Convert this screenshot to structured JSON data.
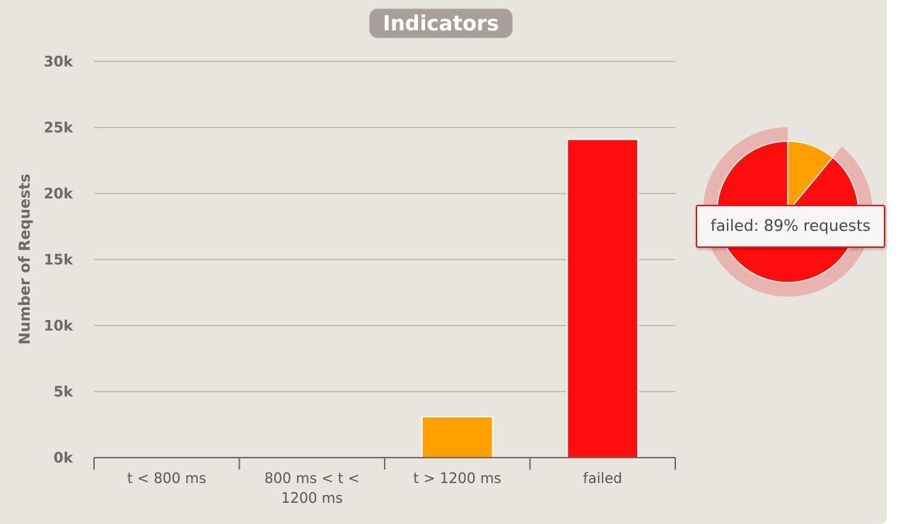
{
  "chart": {
    "title": "Indicators",
    "tooltip": "failed: 89% requests"
  },
  "chart_data": [
    {
      "type": "bar",
      "title": "Indicators",
      "xlabel": "",
      "ylabel": "Number of Requests",
      "categories": [
        "t < 800 ms",
        "800 ms < t < 1200 ms",
        "t > 1200 ms",
        "failed"
      ],
      "category_lines": [
        [
          "t < 800 ms"
        ],
        [
          "800 ms < t <",
          "1200 ms"
        ],
        [
          "t > 1200 ms"
        ],
        [
          "failed"
        ]
      ],
      "values": [
        0,
        0,
        3100,
        24100
      ],
      "colors": [
        "#4caf50",
        "#f5d200",
        "#ff9f00",
        "#ff0c0c"
      ],
      "ylim": [
        0,
        30000
      ],
      "yticks": [
        0,
        5000,
        10000,
        15000,
        20000,
        25000,
        30000
      ],
      "ytick_labels": [
        "0k",
        "5k",
        "10k",
        "15k",
        "20k",
        "25k",
        "30k"
      ],
      "grid": true,
      "legend": "none"
    },
    {
      "type": "pie",
      "labels": [
        "t > 1200 ms",
        "failed"
      ],
      "values": [
        11,
        89
      ],
      "colors": [
        "#ff9f00",
        "#ff0c0c"
      ],
      "highlighted": "failed"
    }
  ]
}
